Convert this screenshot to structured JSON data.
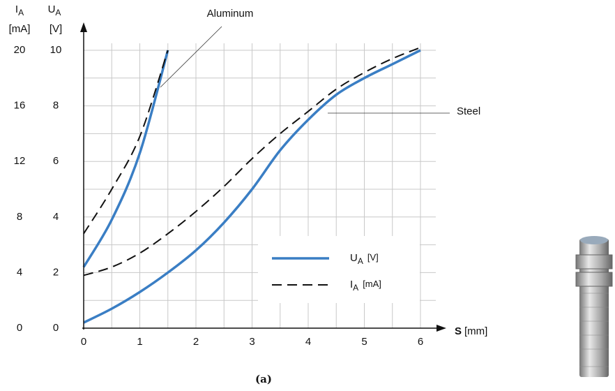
{
  "chart_data": {
    "type": "line",
    "y_label": {
      "symbol": "I",
      "sub": "A",
      "unit": "[mA]"
    },
    "y2_label": {
      "symbol": "U",
      "sub": "A",
      "unit": "[V]"
    },
    "x_label": {
      "symbol": "S",
      "unit": "[mm]"
    },
    "caption": "(a)",
    "xlim": [
      0,
      6
    ],
    "xticks": [
      0,
      1,
      2,
      3,
      4,
      5,
      6
    ],
    "ylim": [
      0,
      20
    ],
    "yticks": [
      0,
      4,
      8,
      12,
      16,
      20
    ],
    "y2lim": [
      0,
      10
    ],
    "y2ticks": [
      0,
      2,
      4,
      6,
      8,
      10
    ],
    "grid": true,
    "legend": [
      {
        "symbol": "U",
        "sub": "A",
        "unit": "[V]",
        "color": "#3a7ec4",
        "dashed": false,
        "axis": "y2"
      },
      {
        "symbol": "I",
        "sub": "A",
        "unit": "[mA]",
        "color": "#111111",
        "dashed": true,
        "axis": "y"
      }
    ],
    "materials": [
      {
        "name": "Aluminum",
        "x": [
          0,
          0.5,
          1,
          1.5
        ],
        "series": [
          {
            "values": [
              2.2,
              3.9,
              6.3,
              10
            ]
          },
          {
            "values": [
              6.8,
              10,
              13.8,
              20
            ]
          }
        ]
      },
      {
        "name": "Steel",
        "x": [
          0,
          0.5,
          1,
          1.5,
          2,
          2.5,
          3,
          3.5,
          4,
          4.5,
          5,
          5.5,
          6
        ],
        "series": [
          {
            "values": [
              0.2,
              0.7,
              1.3,
              2.0,
              2.8,
              3.8,
              5.0,
              6.4,
              7.5,
              8.4,
              9.0,
              9.5,
              10
            ]
          },
          {
            "values": [
              3.8,
              4.4,
              5.4,
              6.8,
              8.4,
              10.2,
              12.2,
              14,
              15.6,
              17.2,
              18.4,
              19.4,
              20.2
            ]
          }
        ]
      }
    ]
  }
}
